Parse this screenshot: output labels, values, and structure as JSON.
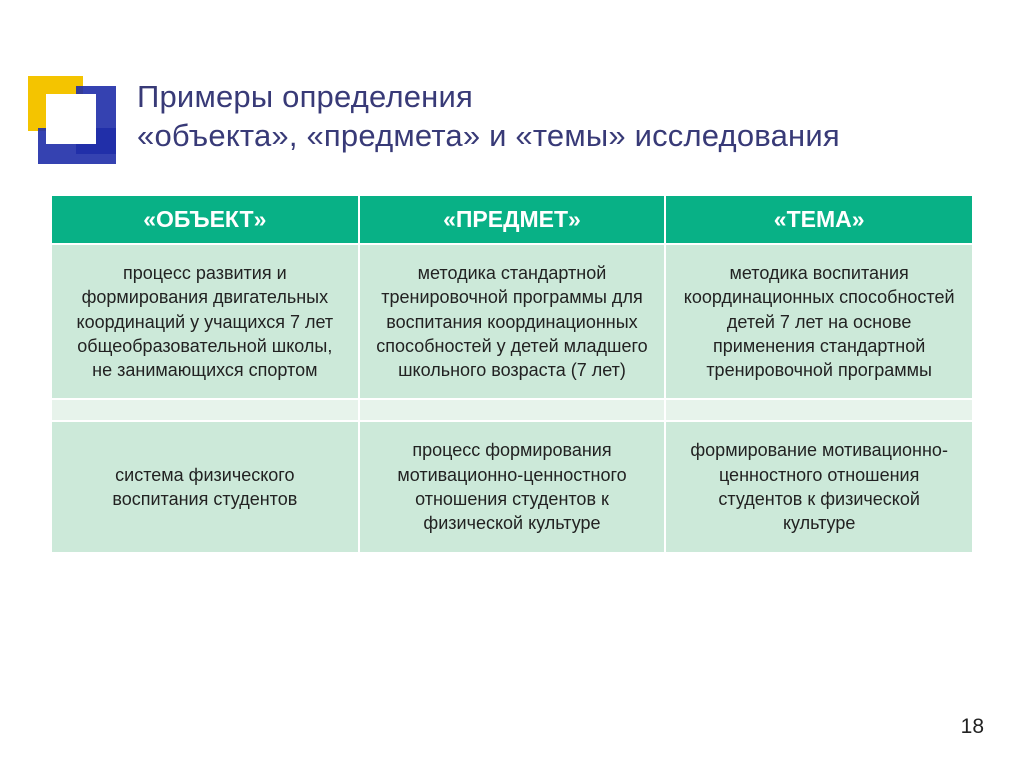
{
  "title": "Примеры определения\n«объекта», «предмета» и «темы» исследования",
  "page_number": "18",
  "colors": {
    "header_bg": "#08b186",
    "row_light": "#cce9d9",
    "row_lighter": "#e7f3eb",
    "title_color": "#383a77",
    "deco_yellow": "#f4c400",
    "deco_blue": "#1f2ea8"
  },
  "table": {
    "headers": [
      "«ОБЪЕКТ»",
      "«ПРЕДМЕТ»",
      "«ТЕМА»"
    ],
    "rows": [
      [
        "процесс развития и формирования двигательных координаций у учащихся 7 лет общеобразовательной школы, не занимающихся спортом",
        "методика стандартной тренировочной программы для воспитания координационных способностей у детей младшего школьного возраста (7 лет)",
        "методика воспитания координационных способностей детей 7 лет на основе применения стандартной тренировочной программы"
      ],
      [
        "",
        "",
        ""
      ],
      [
        "система физического воспитания студентов",
        "процесс формирования мотивационно-ценностного отношения студентов к физической культуре",
        "формирование мотивационно-ценностного отношения студентов к физической культуре"
      ]
    ]
  }
}
